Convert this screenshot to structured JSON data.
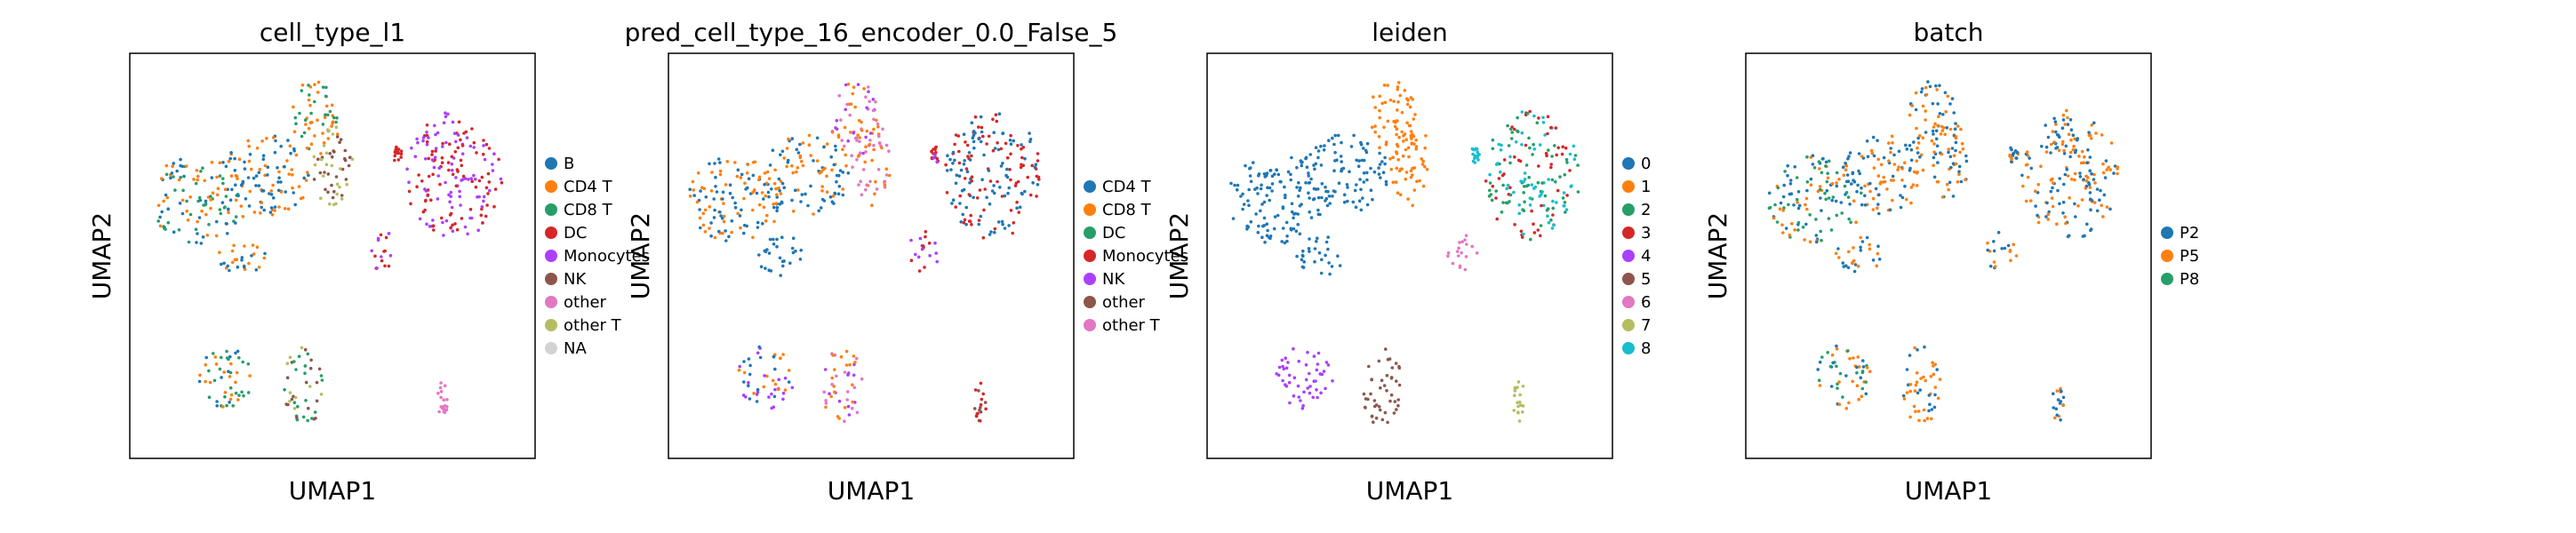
{
  "chart_data": [
    {
      "type": "scatter",
      "title": "cell_type_l1",
      "xlabel": "UMAP1",
      "ylabel": "UMAP2",
      "legend_position": "right",
      "grid": false,
      "series": [
        {
          "name": "B",
          "color": "#1f77b4"
        },
        {
          "name": "CD4 T",
          "color": "#ff7f0e"
        },
        {
          "name": "CD8 T",
          "color": "#279e68"
        },
        {
          "name": "DC",
          "color": "#d62728"
        },
        {
          "name": "Monocytes",
          "color": "#aa40fc"
        },
        {
          "name": "NK",
          "color": "#8c564b"
        },
        {
          "name": "other",
          "color": "#e377c2"
        },
        {
          "name": "other T",
          "color": "#b5bd61"
        },
        {
          "name": "NA",
          "color": "#d3d3d3"
        }
      ]
    },
    {
      "type": "scatter",
      "title": "pred_cell_type_16_encoder_0.0_False_5",
      "xlabel": "UMAP1",
      "ylabel": "UMAP2",
      "legend_position": "right",
      "grid": false,
      "series": [
        {
          "name": "CD4 T",
          "color": "#1f77b4"
        },
        {
          "name": "CD8 T",
          "color": "#ff7f0e"
        },
        {
          "name": "DC",
          "color": "#279e68"
        },
        {
          "name": "Monocytes",
          "color": "#d62728"
        },
        {
          "name": "NK",
          "color": "#aa40fc"
        },
        {
          "name": "other",
          "color": "#8c564b"
        },
        {
          "name": "other T",
          "color": "#e377c2"
        }
      ]
    },
    {
      "type": "scatter",
      "title": "leiden",
      "xlabel": "UMAP1",
      "ylabel": "UMAP2",
      "legend_position": "right",
      "grid": false,
      "series": [
        {
          "name": "0",
          "color": "#1f77b4"
        },
        {
          "name": "1",
          "color": "#ff7f0e"
        },
        {
          "name": "2",
          "color": "#279e68"
        },
        {
          "name": "3",
          "color": "#d62728"
        },
        {
          "name": "4",
          "color": "#aa40fc"
        },
        {
          "name": "5",
          "color": "#8c564b"
        },
        {
          "name": "6",
          "color": "#e377c2"
        },
        {
          "name": "7",
          "color": "#b5bd61"
        },
        {
          "name": "8",
          "color": "#17becf"
        }
      ]
    },
    {
      "type": "scatter",
      "title": "batch",
      "xlabel": "UMAP1",
      "ylabel": "UMAP2",
      "legend_position": "right",
      "grid": false,
      "series": [
        {
          "name": "P2",
          "color": "#1f77b4"
        },
        {
          "name": "P5",
          "color": "#ff7f0e"
        },
        {
          "name": "P8",
          "color": "#279e68"
        }
      ]
    }
  ]
}
